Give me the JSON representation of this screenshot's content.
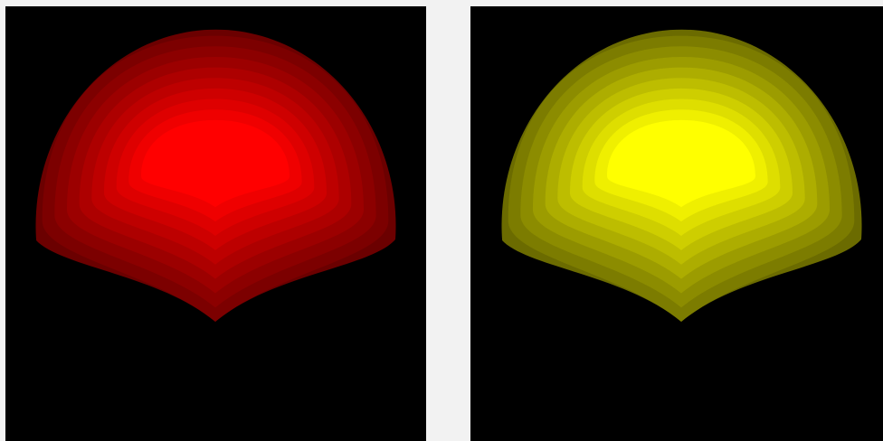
{
  "panels": [
    {
      "color": "#ff0000"
    },
    {
      "color": "#ffff00"
    }
  ]
}
